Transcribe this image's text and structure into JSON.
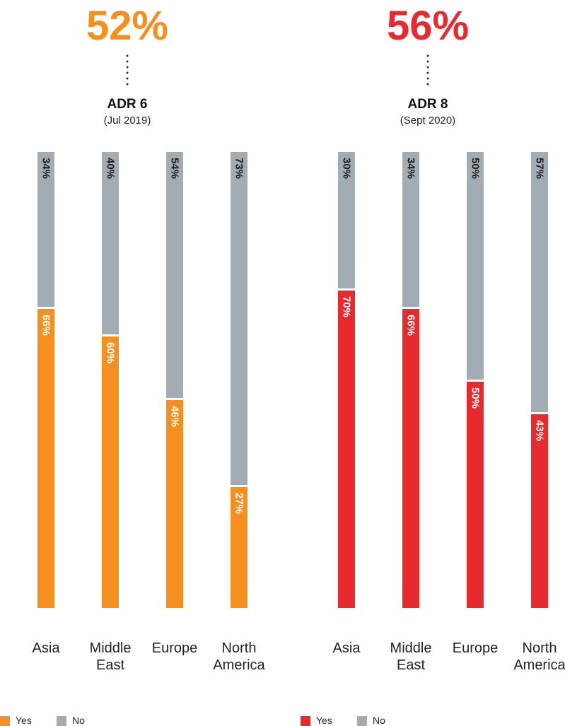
{
  "colors": {
    "no": "#a3abb3",
    "adr6": "#f5901f",
    "adr8": "#e82a2e"
  },
  "chart_data": [
    {
      "type": "bar",
      "headline": "52%",
      "title": "ADR 6",
      "subtitle": "(Jul 2019)",
      "categories": [
        "Asia",
        "Middle East",
        "Europe",
        "North America"
      ],
      "category_lines": [
        [
          "Asia"
        ],
        [
          "Middle",
          "East"
        ],
        [
          "Europe"
        ],
        [
          "North",
          "America"
        ]
      ],
      "series": [
        {
          "name": "Yes",
          "values": [
            66,
            60,
            46,
            27
          ],
          "labels": [
            "66%",
            "60%",
            "46%",
            "27%"
          ]
        },
        {
          "name": "No",
          "values": [
            34,
            40,
            54,
            73
          ],
          "labels": [
            "34%",
            "40%",
            "54%",
            "73%"
          ]
        }
      ],
      "legend": [
        "Yes",
        "No"
      ],
      "legend_position": "bottom-left",
      "ylim": [
        0,
        100
      ],
      "grid": false
    },
    {
      "type": "bar",
      "headline": "56%",
      "title": "ADR 8",
      "subtitle": "(Sept 2020)",
      "categories": [
        "Asia",
        "Middle East",
        "Europe",
        "North America"
      ],
      "category_lines": [
        [
          "Asia"
        ],
        [
          "Middle",
          "East"
        ],
        [
          "Europe"
        ],
        [
          "North",
          "America"
        ]
      ],
      "series": [
        {
          "name": "Yes",
          "values": [
            70,
            66,
            50,
            43
          ],
          "labels": [
            "70%",
            "66%",
            "50%",
            "43%"
          ]
        },
        {
          "name": "No",
          "values": [
            30,
            34,
            50,
            57
          ],
          "labels": [
            "30%",
            "34%",
            "50%",
            "57%"
          ]
        }
      ],
      "legend": [
        "Yes",
        "No"
      ],
      "legend_position": "bottom-left",
      "ylim": [
        0,
        100
      ],
      "grid": false
    }
  ]
}
